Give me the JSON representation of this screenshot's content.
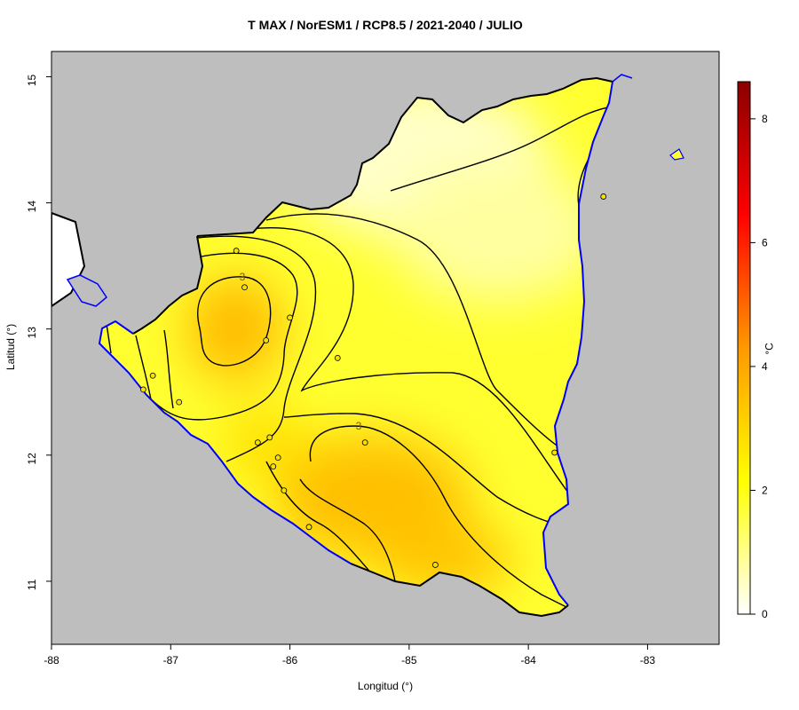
{
  "title": "T MAX / NorESM1 / RCP8.5 / 2021-2040 / JULIO",
  "xlabel": "Longitud (°)",
  "ylabel": "Latitud (°)",
  "colorbar_label": "°C",
  "x_ticks": [
    "-88",
    "-87",
    "-86",
    "-85",
    "-84",
    "-83"
  ],
  "y_ticks": [
    "11",
    "12",
    "13",
    "14",
    "15"
  ],
  "colorbar_ticks": [
    "0",
    "2",
    "4",
    "6",
    "8"
  ],
  "contour_labels": [
    "3",
    "3"
  ],
  "colors": {
    "sea_land": "#bebebe",
    "coast": "#0000ff",
    "low": "#ffffff",
    "mid": "#ffff00",
    "high": "#ff8c00",
    "max": "#8b0000"
  },
  "stations": [
    {
      "lon": -86.45,
      "lat": 13.62
    },
    {
      "lon": -86.38,
      "lat": 13.33
    },
    {
      "lon": -86.0,
      "lat": 13.09
    },
    {
      "lon": -86.2,
      "lat": 12.91
    },
    {
      "lon": -85.6,
      "lat": 12.77
    },
    {
      "lon": -87.15,
      "lat": 12.63
    },
    {
      "lon": -87.23,
      "lat": 12.52
    },
    {
      "lon": -86.93,
      "lat": 12.42
    },
    {
      "lon": -86.27,
      "lat": 12.1
    },
    {
      "lon": -86.17,
      "lat": 12.14
    },
    {
      "lon": -86.1,
      "lat": 11.98
    },
    {
      "lon": -86.14,
      "lat": 11.91
    },
    {
      "lon": -86.05,
      "lat": 11.72
    },
    {
      "lon": -85.84,
      "lat": 11.43
    },
    {
      "lon": -85.37,
      "lat": 12.1
    },
    {
      "lon": -84.78,
      "lat": 11.13
    },
    {
      "lon": -83.78,
      "lat": 12.02
    },
    {
      "lon": -83.37,
      "lat": 14.05
    }
  ]
}
